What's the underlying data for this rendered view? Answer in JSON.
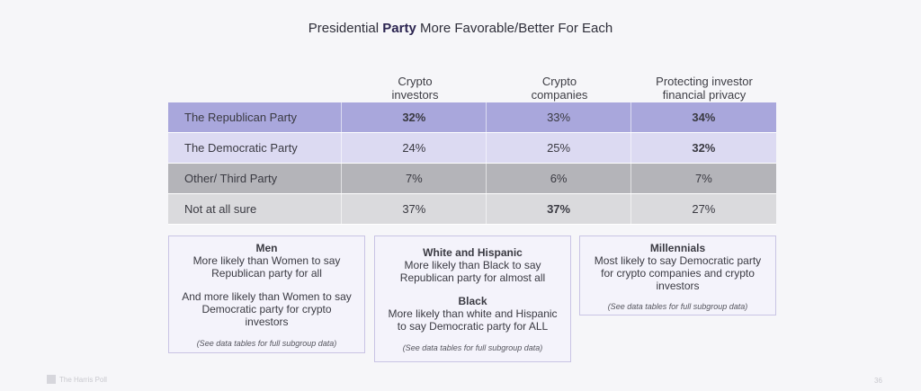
{
  "title": {
    "prefix": "Presidential ",
    "bold": "Party",
    "suffix": " More Favorable/Better For Each"
  },
  "columns": [
    {
      "line1": "Crypto",
      "line2": "investors"
    },
    {
      "line1": "Crypto",
      "line2": "companies"
    },
    {
      "line1": "Protecting investor",
      "line2": "financial privacy"
    }
  ],
  "rows": [
    {
      "label": "The Republican Party",
      "color": "#a9a7dc",
      "values": [
        "32%",
        "33%",
        "34%"
      ],
      "bold": [
        true,
        false,
        true
      ]
    },
    {
      "label": "The Democratic Party",
      "color": "#dcdaf2",
      "values": [
        "24%",
        "25%",
        "32%"
      ],
      "bold": [
        false,
        false,
        true
      ]
    },
    {
      "label": "Other/ Third Party",
      "color": "#b4b4b9",
      "values": [
        "7%",
        "6%",
        "7%"
      ],
      "bold": [
        false,
        false,
        false
      ]
    },
    {
      "label": "Not at all sure",
      "color": "#dadadd",
      "values": [
        "37%",
        "37%",
        "27%"
      ],
      "bold": [
        false,
        true,
        false
      ]
    }
  ],
  "notes": {
    "men": {
      "heading": "Men",
      "line1": "More likely than Women to say",
      "line2": "Republican party for all",
      "line3": "And more likely than Women to say",
      "line4": "Democratic party for crypto",
      "line5": "investors",
      "source": "(See data tables for full subgroup data)"
    },
    "white_hispanic": {
      "heading": "White and Hispanic",
      "line1": "More likely than Black to say",
      "line2": "Republican party for almost all",
      "heading2": "Black",
      "line3": "More likely than white and Hispanic",
      "line4": "to say Democratic party for ALL",
      "source": "(See data tables for full subgroup data)"
    },
    "millennials": {
      "heading": "Millennials",
      "line1": "Most likely to say Democratic party",
      "line2": "for crypto companies and crypto",
      "line3": "investors",
      "source": "(See data tables for full subgroup data)"
    }
  },
  "footer": {
    "logo_text": "The Harris Poll",
    "page_number": "36"
  }
}
